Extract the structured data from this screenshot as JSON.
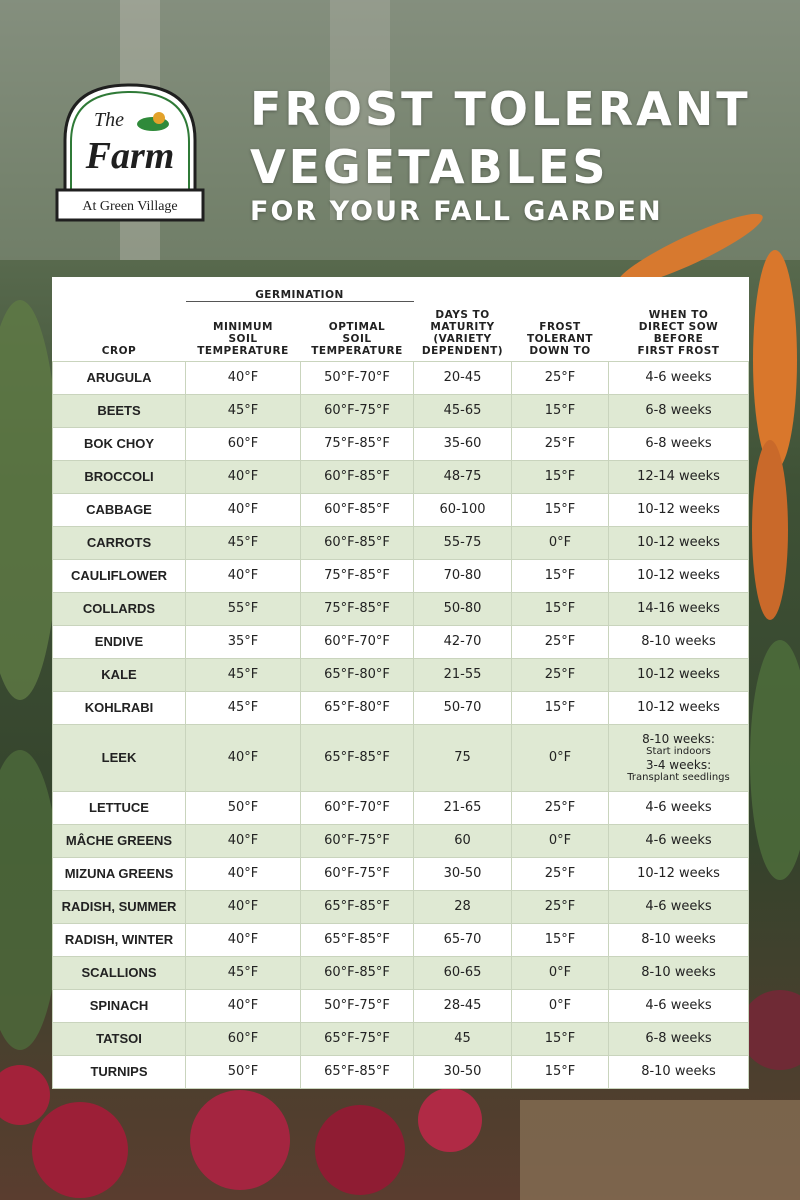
{
  "logo": {
    "line1": "The",
    "line2": "Farm",
    "line3": "At Green Village"
  },
  "header": {
    "title_line1": "FROST TOLERANT",
    "title_line2": "VEGETABLES",
    "subtitle": "FOR YOUR FALL GARDEN"
  },
  "table": {
    "group_header": "GERMINATION",
    "columns": [
      "CROP",
      "MINIMUM\nSOIL\nTEMPERATURE",
      "OPTIMAL\nSOIL\nTEMPERATURE",
      "DAYS TO\nMATURITY\n(VARIETY\nDEPENDENT)",
      "FROST\nTOLERANT\nDOWN TO",
      "WHEN TO\nDIRECT SOW\nBEFORE\nFIRST FROST"
    ],
    "rows": [
      [
        "ARUGULA",
        "40°F",
        "50°F-70°F",
        "20-45",
        "25°F",
        "4-6 weeks"
      ],
      [
        "BEETS",
        "45°F",
        "60°F-75°F",
        "45-65",
        "15°F",
        "6-8 weeks"
      ],
      [
        "BOK CHOY",
        "60°F",
        "75°F-85°F",
        "35-60",
        "25°F",
        "6-8 weeks"
      ],
      [
        "BROCCOLI",
        "40°F",
        "60°F-85°F",
        "48-75",
        "15°F",
        "12-14 weeks"
      ],
      [
        "CABBAGE",
        "40°F",
        "60°F-85°F",
        "60-100",
        "15°F",
        "10-12 weeks"
      ],
      [
        "CARROTS",
        "45°F",
        "60°F-85°F",
        "55-75",
        "0°F",
        "10-12 weeks"
      ],
      [
        "CAULIFLOWER",
        "40°F",
        "75°F-85°F",
        "70-80",
        "15°F",
        "10-12 weeks"
      ],
      [
        "COLLARDS",
        "55°F",
        "75°F-85°F",
        "50-80",
        "15°F",
        "14-16 weeks"
      ],
      [
        "ENDIVE",
        "35°F",
        "60°F-70°F",
        "42-70",
        "25°F",
        "8-10 weeks"
      ],
      [
        "KALE",
        "45°F",
        "65°F-80°F",
        "21-55",
        "25°F",
        "10-12 weeks"
      ],
      [
        "KOHLRABI",
        "45°F",
        "65°F-80°F",
        "50-70",
        "15°F",
        "10-12 weeks"
      ],
      [
        "LEEK",
        "40°F",
        "65°F-85°F",
        "75",
        "0°F",
        [
          "8-10 weeks:",
          "Start indoors",
          "3-4 weeks:",
          "Transplant seedlings"
        ]
      ],
      [
        "LETTUCE",
        "50°F",
        "60°F-70°F",
        "21-65",
        "25°F",
        "4-6 weeks"
      ],
      [
        "MÂCHE GREENS",
        "40°F",
        "60°F-75°F",
        "60",
        "0°F",
        "4-6 weeks"
      ],
      [
        "MIZUNA GREENS",
        "40°F",
        "60°F-75°F",
        "30-50",
        "25°F",
        "10-12 weeks"
      ],
      [
        "RADISH, SUMMER",
        "40°F",
        "65°F-85°F",
        "28",
        "25°F",
        "4-6 weeks"
      ],
      [
        "RADISH, WINTER",
        "40°F",
        "65°F-85°F",
        "65-70",
        "15°F",
        "8-10 weeks"
      ],
      [
        "SCALLIONS",
        "45°F",
        "60°F-85°F",
        "60-65",
        "0°F",
        "8-10 weeks"
      ],
      [
        "SPINACH",
        "40°F",
        "50°F-75°F",
        "28-45",
        "0°F",
        "4-6 weeks"
      ],
      [
        "TATSOI",
        "60°F",
        "65°F-75°F",
        "45",
        "15°F",
        "6-8 weeks"
      ],
      [
        "TURNIPS",
        "50°F",
        "65°F-85°F",
        "30-50",
        "15°F",
        "8-10 weeks"
      ]
    ]
  }
}
